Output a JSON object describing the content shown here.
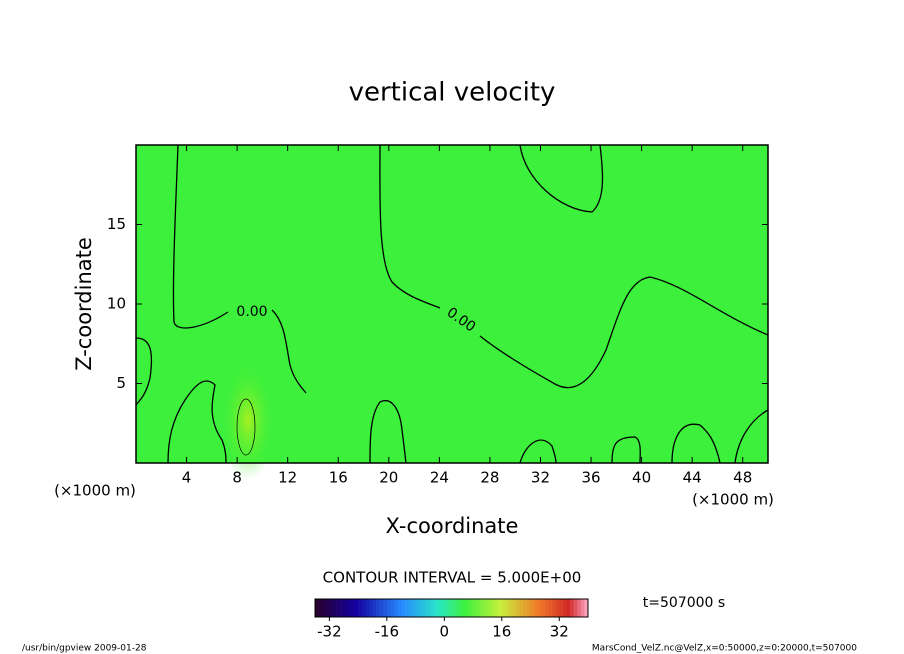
{
  "chart_data": {
    "type": "contour",
    "title": "vertical velocity",
    "xlabel": "X-coordinate",
    "ylabel": "Z-coordinate",
    "xunit": "(×1000 m)",
    "xlim": [
      0,
      50
    ],
    "ylim": [
      0,
      20
    ],
    "xticks": [
      4,
      8,
      12,
      16,
      20,
      24,
      28,
      32,
      36,
      40,
      44,
      48
    ],
    "yticks": [
      5,
      10,
      15
    ],
    "field_color": "#3cf03c",
    "contour_levels": [
      {
        "value": 0,
        "label": "0.00"
      }
    ],
    "contour_interval": "CONTOUR INTERVAL = 5.000E+00",
    "clim": [
      -36,
      40
    ],
    "cticks": [
      -32,
      -16,
      0,
      16,
      32
    ],
    "time_label": "t=507000 s",
    "footer_left": "/usr/bin/gpview  2009-01-28",
    "footer_right": "MarsCond_VelZ.nc@VelZ,x=0:50000,z=0:20000,t=507000"
  }
}
